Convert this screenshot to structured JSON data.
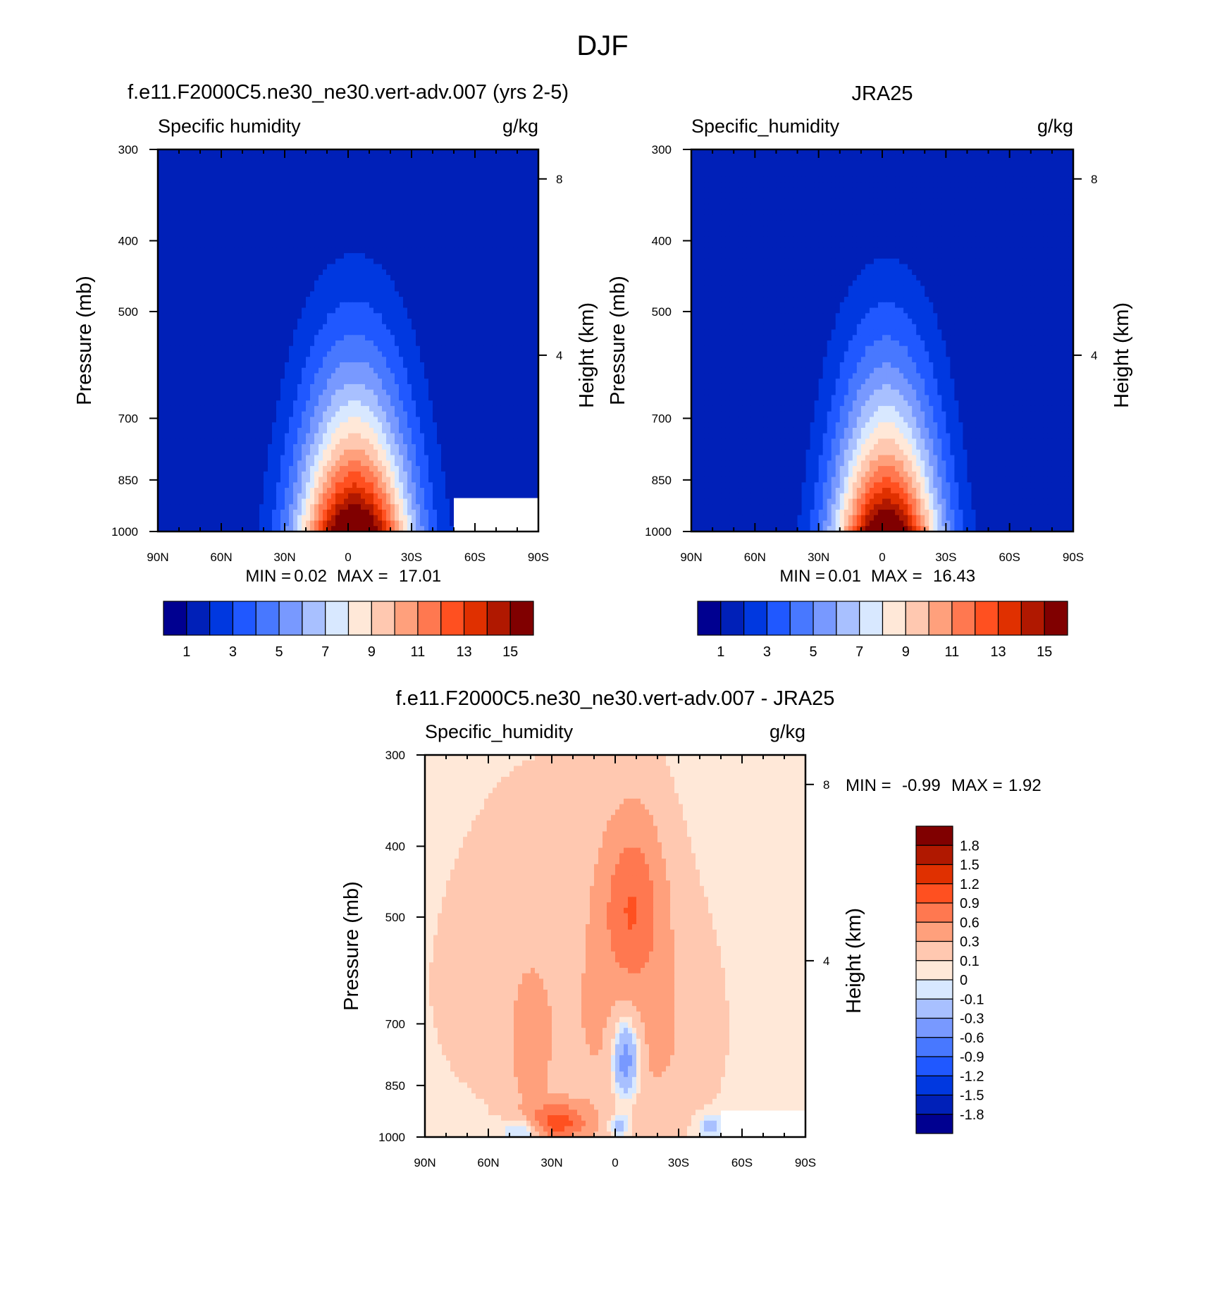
{
  "figure": {
    "title": "DJF"
  },
  "chart_data": [
    {
      "type": "heatmap",
      "title": "f.e11.F2000C5.ne30_ne30.vert-adv.007 (yrs 2-5)",
      "subtitle_left": "Specific humidity",
      "units": "g/kg",
      "ylabel": "Pressure (mb)",
      "y2label": "Height (km)",
      "x_ticks": [
        "90N",
        "60N",
        "30N",
        "0",
        "30S",
        "60S",
        "90S"
      ],
      "y_ticks": [
        "300",
        "400",
        "500",
        "700",
        "850",
        "1000"
      ],
      "y2_ticks": [
        "8",
        "4"
      ],
      "xlim": [
        90,
        -90
      ],
      "ylim": [
        1000,
        300
      ],
      "y_scale": "log",
      "min_max": {
        "label_min": "MIN =",
        "min": "0.02",
        "label_max": "MAX =",
        "max": "17.01"
      },
      "field": {
        "peak": 17.0,
        "sigma_lat": 27,
        "center_lat": -3,
        "top_min": 0.02
      },
      "colorbar": {
        "orientation": "horizontal",
        "levels": [
          0,
          1,
          2,
          3,
          4,
          5,
          6,
          7,
          8,
          9,
          10,
          11,
          12,
          13,
          14,
          15
        ],
        "tick_labels": [
          "1",
          "3",
          "5",
          "7",
          "9",
          "11",
          "13",
          "15"
        ],
        "colors": [
          "#000090",
          "#0020b8",
          "#0038e0",
          "#2058ff",
          "#4878ff",
          "#7899ff",
          "#a8c0ff",
          "#d8e8ff",
          "#ffe8d8",
          "#ffc8b0",
          "#ffa07c",
          "#ff7850",
          "#ff5020",
          "#e03000",
          "#b01800",
          "#800000"
        ]
      },
      "missing_region": {
        "lat_from": -50,
        "lat_to": -90,
        "p_from": 900,
        "p_to": 1000
      }
    },
    {
      "type": "heatmap",
      "title": "JRA25",
      "subtitle_left": "Specific_humidity",
      "units": "g/kg",
      "ylabel": "Pressure (mb)",
      "y2label": "Height (km)",
      "x_ticks": [
        "90N",
        "60N",
        "30N",
        "0",
        "30S",
        "60S",
        "90S"
      ],
      "y_ticks": [
        "300",
        "400",
        "500",
        "700",
        "850",
        "1000"
      ],
      "y2_ticks": [
        "8",
        "4"
      ],
      "xlim": [
        90,
        -90
      ],
      "ylim": [
        1000,
        300
      ],
      "y_scale": "log",
      "min_max": {
        "label_min": "MIN =",
        "min": "0.01",
        "label_max": "MAX =",
        "max": "16.43"
      },
      "field": {
        "peak": 16.4,
        "sigma_lat": 25,
        "center_lat": -2,
        "top_min": 0.01
      },
      "colorbar": {
        "orientation": "horizontal",
        "levels": [
          0,
          1,
          2,
          3,
          4,
          5,
          6,
          7,
          8,
          9,
          10,
          11,
          12,
          13,
          14,
          15
        ],
        "tick_labels": [
          "1",
          "3",
          "5",
          "7",
          "9",
          "11",
          "13",
          "15"
        ],
        "colors": [
          "#000090",
          "#0020b8",
          "#0038e0",
          "#2058ff",
          "#4878ff",
          "#7899ff",
          "#a8c0ff",
          "#d8e8ff",
          "#ffe8d8",
          "#ffc8b0",
          "#ffa07c",
          "#ff7850",
          "#ff5020",
          "#e03000",
          "#b01800",
          "#800000"
        ]
      }
    },
    {
      "type": "heatmap",
      "title": "f.e11.F2000C5.ne30_ne30.vert-adv.007 - JRA25",
      "subtitle_left": "Specific_humidity",
      "units": "g/kg",
      "ylabel": "Pressure (mb)",
      "y2label": "Height (km)",
      "x_ticks": [
        "90N",
        "60N",
        "30N",
        "0",
        "30S",
        "60S",
        "90S"
      ],
      "y_ticks": [
        "300",
        "400",
        "500",
        "700",
        "850",
        "1000"
      ],
      "y2_ticks": [
        "8",
        "4"
      ],
      "xlim": [
        90,
        -90
      ],
      "ylim": [
        1000,
        300
      ],
      "y_scale": "log",
      "min_max": {
        "label_min": "MIN =",
        "min": "-0.99",
        "label_max": "MAX =",
        "max": "1.92"
      },
      "colorbar": {
        "orientation": "vertical",
        "levels": [
          -1.8,
          -1.5,
          -1.2,
          -0.9,
          -0.6,
          -0.3,
          -0.1,
          0,
          0.1,
          0.3,
          0.6,
          0.9,
          1.2,
          1.5,
          1.8
        ],
        "tick_labels": [
          "1.8",
          "1.5",
          "1.2",
          "0.9",
          "0.6",
          "0.3",
          "0.1",
          "0",
          "-0.1",
          "-0.3",
          "-0.6",
          "-0.9",
          "-1.2",
          "-1.5",
          "-1.8"
        ],
        "colors": [
          "#000090",
          "#0020b8",
          "#0038e0",
          "#2058ff",
          "#4878ff",
          "#7899ff",
          "#a8c0ff",
          "#d8e8ff",
          "#ffe8d8",
          "#ffc8b0",
          "#ffa07c",
          "#ff7850",
          "#ff5020",
          "#e03000",
          "#b01800",
          "#800000"
        ]
      },
      "features": [
        {
          "lat": -5,
          "p": 780,
          "amp": -0.75,
          "sig_lat": 7,
          "sig_p": 110
        },
        {
          "lat": 42,
          "p": 975,
          "amp": -0.5,
          "sig_lat": 9,
          "sig_p": 40
        },
        {
          "lat": 28,
          "p": 955,
          "amp": 1.0,
          "sig_lat": 15,
          "sig_p": 55
        },
        {
          "lat": 40,
          "p": 760,
          "amp": 0.4,
          "sig_lat": 8,
          "sig_p": 140
        },
        {
          "lat": -8,
          "p": 480,
          "amp": 0.7,
          "sig_lat": 14,
          "sig_p": 120
        },
        {
          "lat": -12,
          "p": 720,
          "amp": 0.3,
          "sig_lat": 30,
          "sig_p": 250
        },
        {
          "lat": 35,
          "p": 620,
          "amp": 0.15,
          "sig_lat": 50,
          "sig_p": 300
        },
        {
          "lat": -2,
          "p": 965,
          "amp": -0.35,
          "sig_lat": 5,
          "sig_p": 35
        },
        {
          "lat": -45,
          "p": 965,
          "amp": -0.25,
          "sig_lat": 6,
          "sig_p": 35
        }
      ],
      "missing_region": {
        "lat_from": -50,
        "lat_to": -90,
        "p_from": 920,
        "p_to": 1000
      }
    }
  ]
}
